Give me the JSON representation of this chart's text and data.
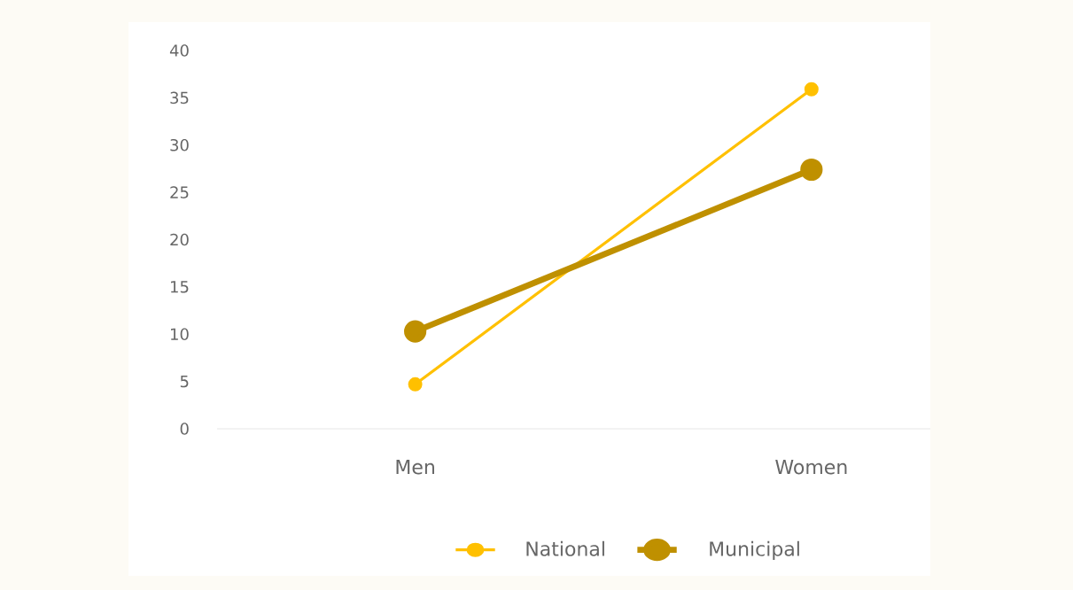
{
  "chart_data": {
    "type": "line",
    "categories": [
      "Men",
      "Women"
    ],
    "series": [
      {
        "name": "National",
        "color": "#ffc000",
        "values": [
          4.7,
          35.9
        ]
      },
      {
        "name": "Municipal",
        "color": "#bf9000",
        "values": [
          10.3,
          27.4
        ]
      }
    ],
    "ylim": [
      0,
      40
    ],
    "yticks": [
      0,
      5,
      10,
      15,
      20,
      25,
      30,
      35,
      40
    ],
    "grid": false,
    "legend": "bottom",
    "marker": "circle",
    "line_style": "solid"
  }
}
